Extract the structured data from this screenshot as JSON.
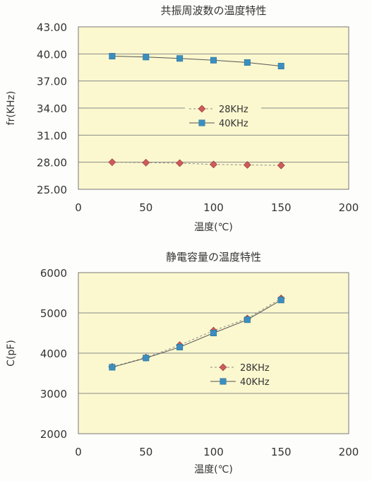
{
  "chart_data": [
    {
      "type": "line",
      "title": "共振周波数の温度特性",
      "xlabel": "温度(℃)",
      "ylabel": "fr(KHz)",
      "xlim": [
        0,
        200
      ],
      "ylim": [
        25,
        43
      ],
      "x_ticks": [
        "0",
        "50",
        "100",
        "150",
        "200"
      ],
      "y_ticks": [
        "25.00",
        "28.00",
        "31.00",
        "34.00",
        "37.00",
        "40.00",
        "43.00"
      ],
      "grid": "horizontal",
      "legend_position": "center",
      "x": [
        25,
        50,
        75,
        100,
        125,
        150
      ],
      "series": [
        {
          "name": "28KHz",
          "values": [
            28.0,
            27.95,
            27.9,
            27.75,
            27.7,
            27.65
          ],
          "color": "#d05a5a",
          "marker": "diamond",
          "line": "dashed"
        },
        {
          "name": "40KHz",
          "values": [
            39.75,
            39.65,
            39.5,
            39.3,
            39.05,
            38.65
          ],
          "color": "#3a8fc0",
          "marker": "square",
          "line": "solid"
        }
      ]
    },
    {
      "type": "line",
      "title": "静電容量の温度特性",
      "xlabel": "温度(℃)",
      "ylabel": "C(pF)",
      "xlim": [
        0,
        200
      ],
      "ylim": [
        2000,
        6000
      ],
      "x_ticks": [
        "0",
        "50",
        "100",
        "150",
        "200"
      ],
      "y_ticks": [
        "2000",
        "3000",
        "4000",
        "5000",
        "6000"
      ],
      "grid": "horizontal",
      "legend_position": "lower-center",
      "x": [
        25,
        50,
        75,
        100,
        125,
        150
      ],
      "series": [
        {
          "name": "28KHz",
          "values": [
            3660,
            3890,
            4200,
            4560,
            4860,
            5360
          ],
          "color": "#d05a5a",
          "marker": "diamond",
          "line": "dashed"
        },
        {
          "name": "40KHz",
          "values": [
            3650,
            3880,
            4150,
            4500,
            4830,
            5320
          ],
          "color": "#3a8fc0",
          "marker": "square",
          "line": "solid"
        }
      ]
    }
  ]
}
